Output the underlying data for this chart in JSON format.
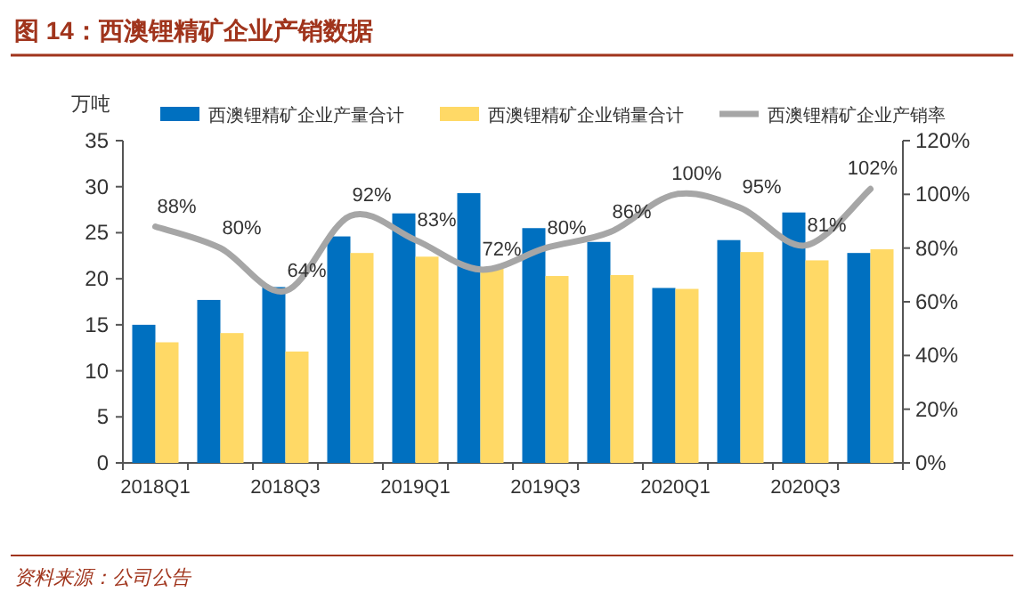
{
  "chart_data": {
    "type": "bar",
    "title": "图 14：西澳锂精矿企业产销数据",
    "ylabel": "万吨",
    "categories": [
      "2018Q1",
      null,
      "2018Q3",
      null,
      "2019Q1",
      null,
      "2019Q3",
      null,
      "2020Q1",
      null,
      "2020Q3",
      null
    ],
    "series": [
      {
        "name": "西澳锂精矿企业产量合计",
        "color": "#0070c0",
        "values": [
          15.0,
          17.7,
          19.1,
          24.6,
          27.1,
          29.3,
          25.5,
          24.0,
          19.0,
          24.2,
          27.2,
          22.8
        ]
      },
      {
        "name": "西澳锂精矿企业销量合计",
        "color": "#ffd966",
        "values": [
          13.1,
          14.1,
          12.1,
          22.8,
          22.4,
          21.1,
          20.3,
          20.4,
          18.9,
          22.9,
          22.0,
          23.2
        ]
      },
      {
        "name": "西澳锂精矿企业产销率",
        "type": "line",
        "axis": "y2",
        "color": "#a6a6a6",
        "values": [
          88,
          80,
          64,
          92,
          83,
          72,
          80,
          86,
          100,
          95,
          81,
          102
        ],
        "value_labels": [
          "88%",
          "80%",
          "64%",
          "92%",
          "83%",
          "72%",
          "80%",
          "86%",
          "100%",
          "95%",
          "81%",
          "102%"
        ]
      }
    ],
    "ylim": [
      0,
      35
    ],
    "yticks": [
      0,
      5,
      10,
      15,
      20,
      25,
      30,
      35
    ],
    "y2lim": [
      0,
      120
    ],
    "y2ticks": [
      {
        "value": 0,
        "label": "0%"
      },
      {
        "value": 20,
        "label": "20%"
      },
      {
        "value": 40,
        "label": "40%"
      },
      {
        "value": 60,
        "label": "60%"
      },
      {
        "value": 80,
        "label": "80%"
      },
      {
        "value": 100,
        "label": "100%"
      },
      {
        "value": 120,
        "label": "120%"
      }
    ],
    "legend": "top",
    "grid": false,
    "annotations": [
      "资料来源：公司公告"
    ]
  }
}
